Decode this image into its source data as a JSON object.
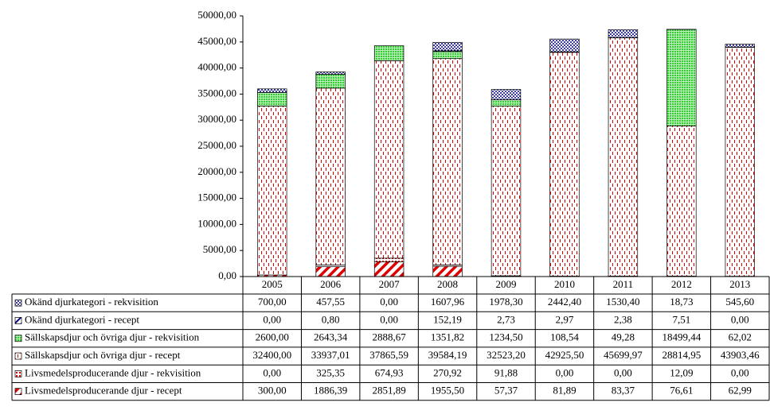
{
  "chart_data": {
    "type": "stacked_bar",
    "categories": [
      "2005",
      "2006",
      "2007",
      "2008",
      "2009",
      "2010",
      "2011",
      "2012",
      "2013"
    ],
    "ylim": [
      0,
      50000
    ],
    "yticks": [
      {
        "value": 0,
        "label": "0,00"
      },
      {
        "value": 5000,
        "label": "5000,00"
      },
      {
        "value": 10000,
        "label": "10000,00"
      },
      {
        "value": 15000,
        "label": "15000,00"
      },
      {
        "value": 20000,
        "label": "20000,00"
      },
      {
        "value": 25000,
        "label": "25000,00"
      },
      {
        "value": 30000,
        "label": "30000,00"
      },
      {
        "value": 35000,
        "label": "35000,00"
      },
      {
        "value": 40000,
        "label": "40000,00"
      },
      {
        "value": 45000,
        "label": "45000,00"
      },
      {
        "value": 50000,
        "label": "50000,00"
      }
    ],
    "series": [
      {
        "name": "Livsmedelsproducerande djur - recept",
        "color": "#e00000",
        "pattern": "diagonal",
        "values": [
          300,
          1886.39,
          2851.89,
          1955.5,
          57.37,
          81.89,
          83.37,
          76.61,
          62.99
        ],
        "value_labels": [
          "300,00",
          "1886,39",
          "2851,89",
          "1955,50",
          "57,37",
          "81,89",
          "83,37",
          "76,61",
          "62,99"
        ]
      },
      {
        "name": "Livsmedelsproducerande djur - rekvisition",
        "color": "#e00000",
        "pattern": "squares",
        "values": [
          0,
          325.35,
          674.93,
          270.92,
          91.88,
          0,
          0,
          12.09,
          0
        ],
        "value_labels": [
          "0,00",
          "325,35",
          "674,93",
          "270,92",
          "91,88",
          "0,00",
          "0,00",
          "12,09",
          "0,00"
        ]
      },
      {
        "name": "Sällskapsdjur och övriga djur - recept",
        "color": "#e00000",
        "pattern": "dashes",
        "values": [
          32400,
          33937.01,
          37865.59,
          39584.19,
          32523.2,
          42925.5,
          45699.97,
          28814.95,
          43903.46
        ],
        "value_labels": [
          "32400,00",
          "33937,01",
          "37865,59",
          "39584,19",
          "32523,20",
          "42925,50",
          "45699,97",
          "28814,95",
          "43903,46"
        ]
      },
      {
        "name": "Sällskapsdjur och övriga djur - rekvisition",
        "color": "#33cc33",
        "pattern": "grid",
        "values": [
          2600,
          2643.34,
          2888.67,
          1351.82,
          1234.5,
          108.54,
          49.28,
          18499.44,
          62.02
        ],
        "value_labels": [
          "2600,00",
          "2643,34",
          "2888,67",
          "1351,82",
          "1234,50",
          "108,54",
          "49,28",
          "18499,44",
          "62,02"
        ]
      },
      {
        "name": "Okänd djurkategori - recept",
        "color": "#000080",
        "pattern": "diagonal",
        "values": [
          0,
          0.8,
          0,
          152.19,
          2.73,
          2.97,
          2.38,
          7.51,
          0
        ],
        "value_labels": [
          "0,00",
          "0,80",
          "0,00",
          "152,19",
          "2,73",
          "2,97",
          "2,38",
          "7,51",
          "0,00"
        ]
      },
      {
        "name": "Okänd djurkategori - rekvisition",
        "color": "#000080",
        "pattern": "dots",
        "values": [
          700,
          457.55,
          0,
          1607.96,
          1978.3,
          2442.4,
          1530.4,
          18.73,
          545.6
        ],
        "value_labels": [
          "700,00",
          "457,55",
          "0,00",
          "1607,96",
          "1978,30",
          "2442,40",
          "1530,40",
          "18,73",
          "545,60"
        ]
      }
    ]
  }
}
